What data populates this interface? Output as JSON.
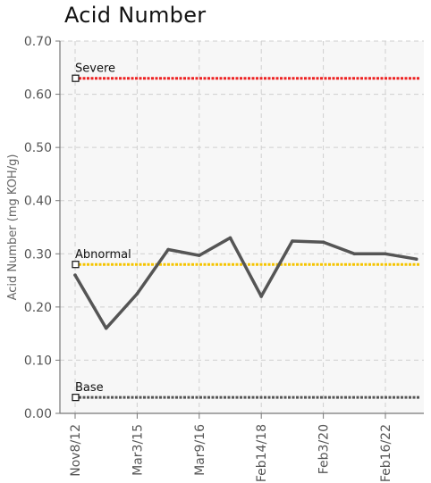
{
  "chart_data": {
    "type": "line",
    "title": "Acid Number",
    "ylabel": "Acid Number (mg KOH/g)",
    "xlabel": "",
    "ylim": [
      0,
      0.7
    ],
    "yticks": [
      "0.00",
      "0.10",
      "0.20",
      "0.30",
      "0.40",
      "0.50",
      "0.60",
      "0.70"
    ],
    "grid": true,
    "x_tick_labels": [
      {
        "label": "Nov8/12",
        "index": 0
      },
      {
        "label": "Mar3/15",
        "index": 2
      },
      {
        "label": "Mar9/16",
        "index": 4
      },
      {
        "label": "Feb14/18",
        "index": 6
      },
      {
        "label": "Feb3/20",
        "index": 8
      },
      {
        "label": "Feb16/22",
        "index": 10
      }
    ],
    "series": [
      {
        "values": [
          0.26,
          0.16,
          0.225,
          0.308,
          0.297,
          0.33,
          0.22,
          0.324,
          0.322,
          0.3,
          0.3,
          0.29
        ],
        "color": "#555555"
      }
    ],
    "limits": [
      {
        "name": "Severe",
        "value": 0.63,
        "color": "#ee2222"
      },
      {
        "name": "Abnormal",
        "value": 0.28,
        "color": "#f5c400"
      },
      {
        "name": "Base",
        "value": 0.03,
        "color": "#555555"
      }
    ]
  }
}
